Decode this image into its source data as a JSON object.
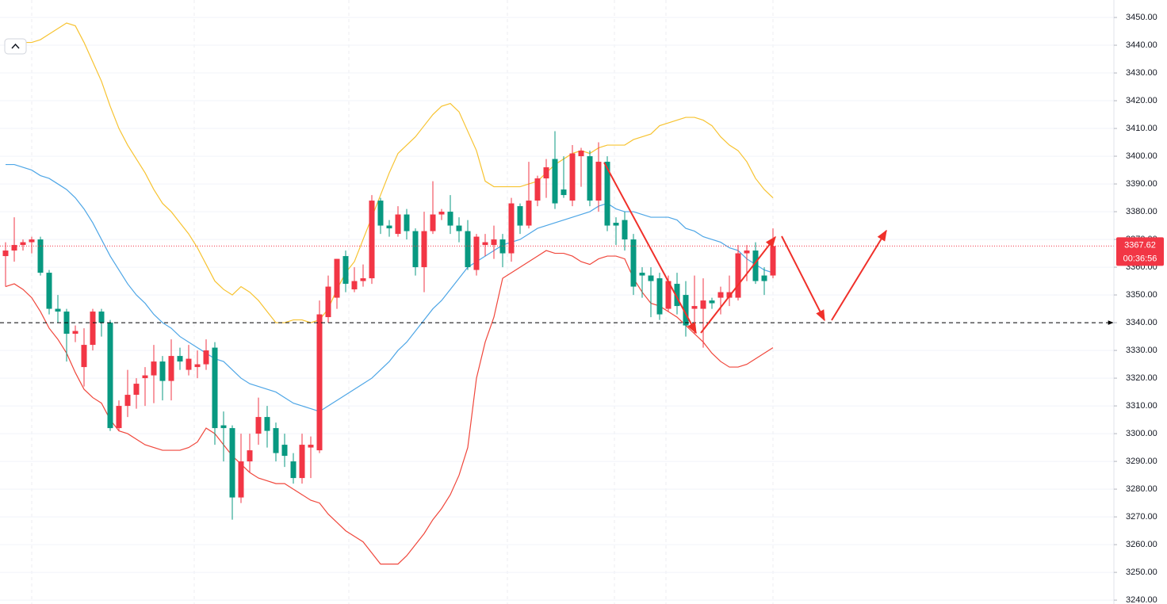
{
  "chart_data": {
    "type": "candlestick",
    "up_color": "#f23645",
    "down_color": "#089981",
    "open": [
      3364,
      3366,
      3368,
      3369,
      3370,
      3358,
      3345,
      3344,
      3336,
      3324,
      3332,
      3344,
      3340,
      3302,
      3310,
      3314,
      3320,
      3321,
      3326,
      3319,
      3328,
      3323,
      3324,
      3325,
      3331,
      3303,
      3302,
      3277,
      3290,
      3300,
      3306,
      3302,
      3296,
      3290,
      3284,
      3295,
      3294,
      3342,
      3349,
      3364,
      3352,
      3355,
      3356,
      3384,
      3375,
      3372,
      3379,
      3373,
      3360,
      3373,
      3379,
      3380,
      3375,
      3373,
      3359,
      3368,
      3368,
      3370,
      3365,
      3382,
      3375,
      3384,
      3392,
      3399,
      3388,
      3384,
      3400,
      3400,
      3384,
      3398,
      3376,
      3377,
      3370,
      3358,
      3357,
      3356,
      3345,
      3354,
      3350,
      3345,
      3345,
      3348,
      3349,
      3349,
      3349,
      3365,
      3366,
      3357,
      3357
    ],
    "high": [
      3369,
      3378,
      3370,
      3371,
      3371,
      3359,
      3350,
      3345,
      3339,
      3338,
      3345,
      3345,
      3341,
      3312,
      3323,
      3320,
      3324,
      3332,
      3328,
      3334,
      3331,
      3332,
      3330,
      3334,
      3333,
      3308,
      3303,
      3300,
      3300,
      3313,
      3310,
      3304,
      3300,
      3293,
      3300,
      3299,
      3348,
      3357,
      3363,
      3366,
      3360,
      3361,
      3386,
      3385,
      3377,
      3382,
      3381,
      3374,
      3380,
      3391,
      3381,
      3386,
      3378,
      3377,
      3372,
      3372,
      3375,
      3372,
      3385,
      3383,
      3398,
      3393,
      3399,
      3409,
      3400,
      3404,
      3403,
      3402,
      3405,
      3400,
      3378,
      3380,
      3372,
      3360,
      3360,
      3358,
      3357,
      3358,
      3355,
      3357,
      3356,
      3349,
      3353,
      3357,
      3368,
      3368,
      3369,
      3360,
      3374
    ],
    "low": [
      3353,
      3362,
      3366,
      3365,
      3357,
      3343,
      3340,
      3326,
      3333,
      3317,
      3330,
      3335,
      3301,
      3301,
      3306,
      3309,
      3310,
      3311,
      3312,
      3312,
      3323,
      3321,
      3320,
      3323,
      3296,
      3290,
      3269,
      3275,
      3286,
      3296,
      3295,
      3290,
      3288,
      3282,
      3282,
      3284,
      3293,
      3340,
      3345,
      3351,
      3351,
      3353,
      3354,
      3372,
      3371,
      3371,
      3370,
      3357,
      3351,
      3372,
      3377,
      3372,
      3369,
      3359,
      3357,
      3364,
      3363,
      3360,
      3362,
      3372,
      3374,
      3382,
      3385,
      3381,
      3385,
      3382,
      3389,
      3382,
      3380,
      3373,
      3368,
      3366,
      3350,
      3349,
      3342,
      3341,
      3344,
      3343,
      3335,
      3336,
      3331,
      3345,
      3343,
      3346,
      3348,
      3355,
      3354,
      3350,
      3356
    ],
    "close": [
      3366,
      3368,
      3369,
      3370,
      3358,
      3345,
      3344,
      3336,
      3337,
      3332,
      3344,
      3340,
      3302,
      3310,
      3314,
      3318,
      3321,
      3326,
      3319,
      3328,
      3326,
      3327,
      3325,
      3330,
      3302,
      3302,
      3277,
      3290,
      3294,
      3306,
      3301,
      3293,
      3292,
      3284,
      3296,
      3296,
      3343,
      3353,
      3363,
      3354,
      3355,
      3356,
      3384,
      3375,
      3374,
      3379,
      3373,
      3360,
      3373,
      3379,
      3380,
      3375,
      3373,
      3360,
      3371,
      3369,
      3370,
      3365,
      3383,
      3375,
      3384,
      3392,
      3396,
      3383,
      3386,
      3401,
      3402,
      3384,
      3398,
      3375,
      3375,
      3370,
      3353,
      3357,
      3355,
      3343,
      3355,
      3346,
      3339,
      3346,
      3348,
      3347,
      3351,
      3351,
      3365,
      3366,
      3355,
      3355,
      3367.62
    ],
    "overlays": [
      {
        "color": "#f7c331",
        "values": [
          3441,
          3441,
          3441,
          3441,
          3442,
          3444,
          3446,
          3448,
          3447,
          3441,
          3434,
          3427,
          3418,
          3410,
          3404,
          3399,
          3394,
          3388,
          3383,
          3380,
          3376,
          3372,
          3367,
          3361,
          3355,
          3352,
          3350,
          3353,
          3351,
          3348,
          3344,
          3340,
          3340,
          3341,
          3341,
          3340,
          3341,
          3345,
          3352,
          3358,
          3362,
          3370,
          3378,
          3386,
          3394,
          3401,
          3404,
          3407,
          3411,
          3415,
          3418,
          3419,
          3416,
          3409,
          3402,
          3391,
          3389,
          3389,
          3389,
          3389,
          3390,
          3391,
          3394,
          3397,
          3399,
          3401,
          3402,
          3401,
          3403,
          3404,
          3404,
          3404,
          3406,
          3407,
          3408,
          3411,
          3412,
          3413,
          3414,
          3414,
          3413,
          3411,
          3407,
          3404,
          3402,
          3398,
          3392,
          3388,
          3385
        ]
      },
      {
        "color": "#4ea6e6",
        "values": [
          3397,
          3397,
          3396,
          3395,
          3393,
          3392,
          3390,
          3388,
          3385,
          3381,
          3376,
          3370,
          3364,
          3359,
          3354,
          3350,
          3347,
          3343,
          3340,
          3338,
          3335,
          3333,
          3331,
          3329,
          3327,
          3326,
          3323,
          3320,
          3318,
          3317,
          3316,
          3315,
          3313,
          3311,
          3310,
          3309,
          3308,
          3310,
          3312,
          3314,
          3316,
          3318,
          3320,
          3323,
          3326,
          3330,
          3333,
          3337,
          3341,
          3345,
          3348,
          3352,
          3356,
          3360,
          3362,
          3364,
          3366,
          3368,
          3369,
          3370,
          3372,
          3374,
          3375,
          3376,
          3377,
          3378,
          3379,
          3380,
          3382,
          3383,
          3381,
          3380,
          3380,
          3379,
          3378,
          3378,
          3378,
          3377,
          3374,
          3373,
          3371,
          3370,
          3369,
          3367,
          3366,
          3363,
          3361,
          3359,
          3358
        ]
      },
      {
        "color": "#f0473c",
        "values": [
          3353,
          3354,
          3352,
          3349,
          3344,
          3338,
          3334,
          3329,
          3322,
          3316,
          3313,
          3311,
          3305,
          3301,
          3300,
          3298,
          3296,
          3295,
          3294,
          3294,
          3294,
          3295,
          3297,
          3302,
          3300,
          3296,
          3292,
          3289,
          3286,
          3284,
          3283,
          3282,
          3282,
          3280,
          3278,
          3276,
          3275,
          3271,
          3268,
          3265,
          3263,
          3261,
          3257,
          3253,
          3253,
          3253,
          3256,
          3260,
          3264,
          3269,
          3273,
          3278,
          3285,
          3295,
          3320,
          3333,
          3342,
          3356,
          3358,
          3360,
          3362,
          3364,
          3366,
          3365,
          3365,
          3364,
          3362,
          3361,
          3363,
          3364,
          3364,
          3363,
          3356,
          3351,
          3347,
          3346,
          3344,
          3342,
          3339,
          3336,
          3333,
          3329,
          3326,
          3324,
          3324,
          3325,
          3327,
          3329,
          3331
        ]
      }
    ],
    "ylim": [
      3238.6,
      3456.3
    ],
    "yticks": [
      {
        "value": 3450,
        "label": "3450.00"
      },
      {
        "value": 3440,
        "label": "3440.00"
      },
      {
        "value": 3430,
        "label": "3430.00"
      },
      {
        "value": 3420,
        "label": "3420.00"
      },
      {
        "value": 3410,
        "label": "3410.00"
      },
      {
        "value": 3400,
        "label": "3400.00"
      },
      {
        "value": 3390,
        "label": "3390.00"
      },
      {
        "value": 3380,
        "label": "3380.00"
      },
      {
        "value": 3370,
        "label": "3370.00"
      },
      {
        "value": 3360,
        "label": "3360.00"
      },
      {
        "value": 3350,
        "label": "3350.00"
      },
      {
        "value": 3340,
        "label": "3340.00"
      },
      {
        "value": 3330,
        "label": "3330.00"
      },
      {
        "value": 3320,
        "label": "3320.00"
      },
      {
        "value": 3310,
        "label": "3310.00"
      },
      {
        "value": 3300,
        "label": "3300.00"
      },
      {
        "value": 3290,
        "label": "3290.00"
      },
      {
        "value": 3280,
        "label": "3280.00"
      },
      {
        "value": 3270,
        "label": "3270.00"
      },
      {
        "value": 3260,
        "label": "3260.00"
      },
      {
        "value": 3250,
        "label": "3250.00"
      },
      {
        "value": 3240,
        "label": "3240.00"
      }
    ],
    "grid": true,
    "hline": 3340,
    "last_price": 3367.62,
    "countdown": "00:36:56"
  }
}
